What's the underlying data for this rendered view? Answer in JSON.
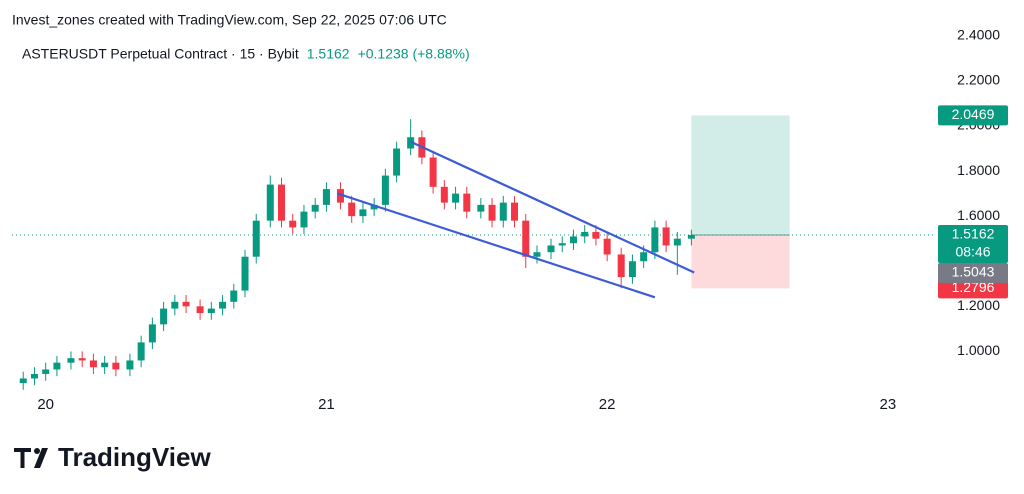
{
  "header": {
    "watermark": "Invest_zones created with TradingView.com, Sep 22, 2025 07:06 UTC",
    "brand": "TradingView"
  },
  "chart_data": {
    "type": "candlestick",
    "title": "ASTERUSDT Perpetual Contract · 15 · Bybit",
    "last_price": 1.5162,
    "change": "+0.1238 (+8.88%)",
    "countdown": "08:46",
    "marker_price": 1.5043,
    "up_color": "#089981",
    "down_color": "#f23645",
    "x": [
      19.92,
      19.96,
      20.0,
      20.04,
      20.09,
      20.13,
      20.17,
      20.21,
      20.25,
      20.3,
      20.34,
      20.38,
      20.42,
      20.46,
      20.5,
      20.55,
      20.59,
      20.63,
      20.67,
      20.71,
      20.75,
      20.8,
      20.84,
      20.88,
      20.92,
      20.96,
      21.0,
      21.05,
      21.09,
      21.13,
      21.17,
      21.21,
      21.25,
      21.3,
      21.34,
      21.38,
      21.42,
      21.46,
      21.5,
      21.55,
      21.59,
      21.63,
      21.67,
      21.71,
      21.75,
      21.8,
      21.84,
      21.88,
      21.92,
      21.96,
      22.0,
      22.05,
      22.09,
      22.13,
      22.17,
      22.21,
      22.25,
      22.3
    ],
    "open": [
      0.86,
      0.88,
      0.9,
      0.92,
      0.95,
      0.97,
      0.96,
      0.93,
      0.95,
      0.92,
      0.96,
      1.04,
      1.12,
      1.19,
      1.22,
      1.2,
      1.17,
      1.19,
      1.22,
      1.27,
      1.42,
      1.58,
      1.74,
      1.58,
      1.55,
      1.62,
      1.65,
      1.72,
      1.66,
      1.6,
      1.63,
      1.65,
      1.78,
      1.9,
      1.95,
      1.86,
      1.73,
      1.66,
      1.7,
      1.62,
      1.65,
      1.58,
      1.66,
      1.58,
      1.42,
      1.44,
      1.47,
      1.48,
      1.51,
      1.53,
      1.5,
      1.43,
      1.33,
      1.4,
      1.44,
      1.55,
      1.47,
      1.5
    ],
    "high": [
      0.91,
      0.93,
      0.95,
      0.98,
      1.0,
      1.0,
      0.99,
      0.98,
      0.98,
      0.99,
      1.07,
      1.15,
      1.22,
      1.25,
      1.25,
      1.23,
      1.22,
      1.25,
      1.3,
      1.45,
      1.61,
      1.78,
      1.77,
      1.61,
      1.65,
      1.68,
      1.75,
      1.75,
      1.69,
      1.66,
      1.68,
      1.81,
      1.93,
      2.03,
      1.98,
      1.89,
      1.76,
      1.73,
      1.73,
      1.68,
      1.68,
      1.69,
      1.69,
      1.61,
      1.47,
      1.5,
      1.51,
      1.54,
      1.56,
      1.56,
      1.53,
      1.46,
      1.43,
      1.47,
      1.58,
      1.58,
      1.53,
      1.54
    ],
    "low": [
      0.83,
      0.85,
      0.87,
      0.89,
      0.92,
      0.93,
      0.9,
      0.9,
      0.89,
      0.89,
      0.93,
      1.01,
      1.09,
      1.16,
      1.17,
      1.14,
      1.14,
      1.16,
      1.19,
      1.24,
      1.39,
      1.55,
      1.55,
      1.52,
      1.52,
      1.59,
      1.62,
      1.63,
      1.57,
      1.57,
      1.6,
      1.62,
      1.75,
      1.87,
      1.83,
      1.7,
      1.63,
      1.63,
      1.59,
      1.59,
      1.55,
      1.55,
      1.55,
      1.37,
      1.39,
      1.41,
      1.44,
      1.45,
      1.48,
      1.47,
      1.4,
      1.28,
      1.3,
      1.37,
      1.41,
      1.44,
      1.34,
      1.47
    ],
    "close": [
      0.88,
      0.9,
      0.92,
      0.95,
      0.97,
      0.96,
      0.93,
      0.95,
      0.92,
      0.96,
      1.04,
      1.12,
      1.19,
      1.22,
      1.2,
      1.17,
      1.19,
      1.22,
      1.27,
      1.42,
      1.58,
      1.74,
      1.58,
      1.55,
      1.62,
      1.65,
      1.72,
      1.66,
      1.6,
      1.63,
      1.65,
      1.78,
      1.9,
      1.95,
      1.86,
      1.73,
      1.66,
      1.7,
      1.62,
      1.65,
      1.58,
      1.66,
      1.58,
      1.42,
      1.44,
      1.47,
      1.48,
      1.51,
      1.53,
      1.5,
      1.43,
      1.33,
      1.4,
      1.44,
      1.55,
      1.47,
      1.5,
      1.5162
    ],
    "xlim": [
      19.88,
      23.15
    ],
    "xticks": [
      20,
      21,
      22,
      23
    ],
    "ylim": [
      0.82,
      2.47
    ],
    "yticks": [
      {
        "value": 1.0,
        "label": "1.0000"
      },
      {
        "value": 1.2,
        "label": "1.2000"
      },
      {
        "value": 1.4,
        "label": "1.4000"
      },
      {
        "value": 1.6,
        "label": "1.6000"
      },
      {
        "value": 1.8,
        "label": "1.8000"
      },
      {
        "value": 2.0,
        "label": "2.0000"
      },
      {
        "value": 2.2,
        "label": "2.2000"
      },
      {
        "value": 2.4,
        "label": "2.4000"
      }
    ],
    "trendlines": [
      {
        "color": "#3d5bd9",
        "x": [
          21.3,
          22.31
        ],
        "y": [
          1.93,
          1.35
        ]
      },
      {
        "color": "#3d5bd9",
        "x": [
          21.04,
          22.17
        ],
        "y": [
          1.7,
          1.24
        ]
      }
    ],
    "position": {
      "x": [
        22.3,
        22.65
      ],
      "entry": 1.5162,
      "target": 2.0469,
      "stop": 1.2796
    }
  }
}
